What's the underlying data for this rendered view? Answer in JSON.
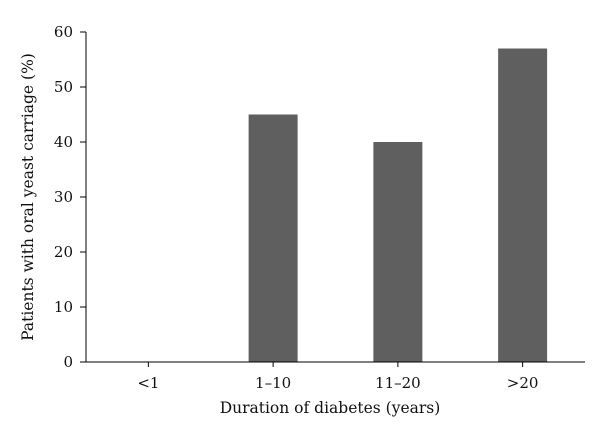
{
  "chart_data": {
    "type": "bar",
    "categories": [
      "<1",
      "1–10",
      "11–20",
      ">20"
    ],
    "values": [
      0,
      45,
      40,
      57
    ],
    "xlabel": "Duration of diabetes (years)",
    "ylabel": "Patients with oral yeast carriage (%)",
    "ylim": [
      0,
      60
    ],
    "yticks": [
      0,
      10,
      20,
      30,
      40,
      50,
      60
    ],
    "grid": false,
    "legend": "none",
    "bar_color": "#5f5f5f"
  }
}
